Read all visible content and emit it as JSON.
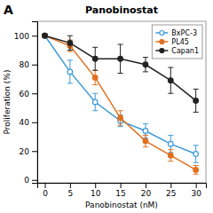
{
  "chart_data": {
    "type": "line",
    "title": "Panobinostat",
    "annotations": [
      "A"
    ],
    "xlabel": "Panobinostat (nM)",
    "ylabel": "Proliferation (%)",
    "xlim": [
      -1.5,
      32
    ],
    "ylim": [
      -2,
      110
    ],
    "xticks": [
      0,
      5,
      10,
      15,
      20,
      25,
      30
    ],
    "yticks": [
      0,
      20,
      40,
      60,
      80,
      100
    ],
    "legend": "upper right",
    "grid": false,
    "x": [
      0,
      5,
      10,
      15,
      20,
      25,
      30
    ],
    "series": [
      {
        "name": "BxPC-3",
        "color": "#3a9ad9",
        "marker": "circle-open",
        "values": [
          100,
          75,
          54,
          41,
          34,
          25,
          18
        ],
        "errors": [
          1,
          8,
          6,
          4,
          5,
          6,
          6
        ]
      },
      {
        "name": "PL45",
        "color": "#e07020",
        "marker": "circle",
        "values": [
          100,
          93,
          71,
          43,
          27,
          17,
          7
        ],
        "errors": [
          1,
          4,
          5,
          5,
          4,
          4,
          3
        ]
      },
      {
        "name": "Capan1",
        "color": "#222222",
        "marker": "circle",
        "values": [
          100,
          95,
          84,
          84,
          80,
          69,
          55
        ],
        "errors": [
          1,
          5,
          8,
          10,
          5,
          9,
          8
        ]
      }
    ]
  }
}
